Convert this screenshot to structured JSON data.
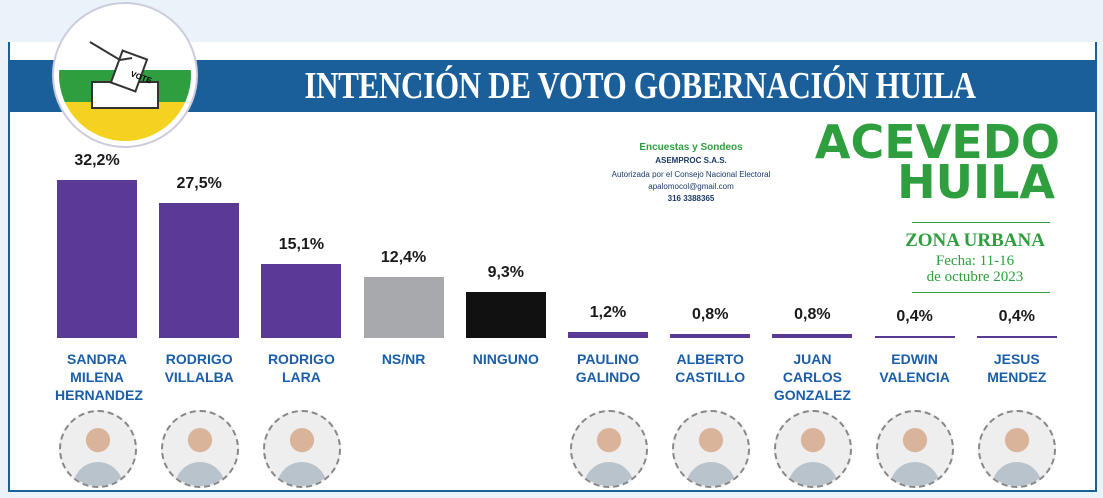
{
  "chart_data": {
    "type": "bar",
    "title": "INTENCIÓN DE VOTO GOBERNACIÓN HUILA",
    "categories": [
      "SANDRA MILENA HERNANDEZ",
      "RODRIGO VILLALBA",
      "RODRIGO LARA",
      "NS/NR",
      "NINGUNO",
      "PAULINO GALINDO",
      "ALBERTO CASTILLO",
      "JUAN CARLOS GONZALEZ",
      "EDWIN VALENCIA",
      "JESUS MENDEZ"
    ],
    "values": [
      32.2,
      27.5,
      15.1,
      12.4,
      9.3,
      1.2,
      0.8,
      0.8,
      0.4,
      0.4
    ],
    "value_labels": [
      "32,2%",
      "27,5%",
      "15,1%",
      "12,4%",
      "9,3%",
      "1,2%",
      "0,8%",
      "0,8%",
      "0,4%",
      "0,4%"
    ],
    "colors": [
      "#5b3a96",
      "#5b3a96",
      "#5b3a96",
      "#a7a9ac",
      "#111111",
      "#5b3a96",
      "#5b3a96",
      "#5b3a96",
      "#5b3a96",
      "#5b3a96"
    ]
  },
  "logo_text": "VOTE",
  "pollster": {
    "name": "Encuestas y Sondeos",
    "company": "ASEMPROC S.A.S.",
    "authorization": "Autorizada por el Consejo Nacional Electoral",
    "email": "apalomocol@gmail.com",
    "phone": "316 3388365"
  },
  "brand": [
    "ACEVEDO",
    "HUILA"
  ],
  "zone": "ZONA URBANA",
  "date": [
    "Fecha: 11-16",
    "de octubre 2023"
  ]
}
